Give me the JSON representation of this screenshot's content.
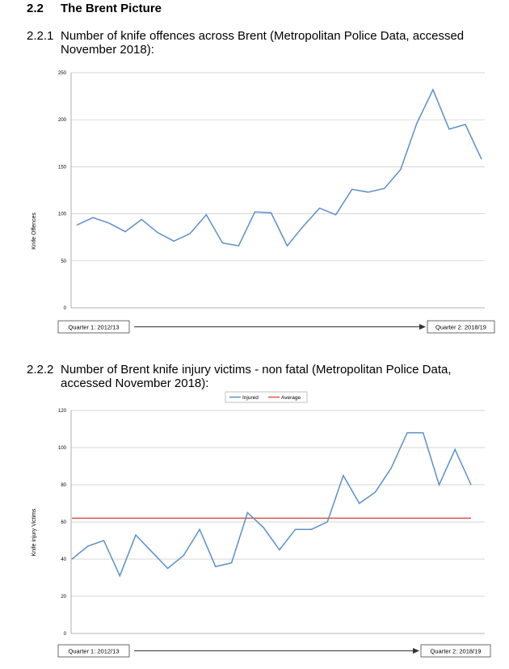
{
  "section": {
    "number": "2.2",
    "title": "The Brent Picture"
  },
  "subsections": [
    {
      "number": "2.2.1",
      "title": "Number of knife offences across Brent (Metropolitan Police Data, accessed November 2018):"
    },
    {
      "number": "2.2.2",
      "title": "Number of Brent knife injury victims - non fatal (Metropolitan Police Data, accessed November 2018):"
    }
  ],
  "colors": {
    "series": "#5b8fc8",
    "average": "#d9534f",
    "grid": "#c8c8c8"
  },
  "chart_data": [
    {
      "type": "line",
      "title": "",
      "xlabel": "",
      "ylabel": "Knife Offences",
      "ylim": [
        0,
        250
      ],
      "yticks": [
        0,
        50,
        100,
        150,
        200,
        250
      ],
      "grid": true,
      "x_start_label": "Quarter 1: 2012/13",
      "x_end_label": "Quarter 2: 2018/19",
      "series": [
        {
          "name": "Knife Offences",
          "values": [
            88,
            96,
            90,
            81,
            94,
            80,
            71,
            79,
            99,
            69,
            66,
            102,
            101,
            66,
            87,
            106,
            99,
            126,
            123,
            127,
            147,
            196,
            232,
            190,
            195,
            158
          ]
        }
      ]
    },
    {
      "type": "line",
      "title": "",
      "xlabel": "",
      "ylabel": "Knife injury Victims",
      "ylim": [
        0,
        120
      ],
      "yticks": [
        0,
        20,
        40,
        60,
        80,
        100,
        120
      ],
      "grid": true,
      "legend": "top",
      "x_start_label": "Quarter 1: 2012/13",
      "x_end_label": "Quarter 2: 2018/19",
      "series": [
        {
          "name": "Injured",
          "values": [
            40,
            47,
            50,
            31,
            53,
            44,
            35,
            42,
            56,
            36,
            38,
            65,
            57,
            45,
            56,
            56,
            60,
            85,
            70,
            76,
            89,
            108,
            108,
            80,
            99,
            80
          ]
        },
        {
          "name": "Average",
          "values": [
            62,
            62,
            62,
            62,
            62,
            62,
            62,
            62,
            62,
            62,
            62,
            62,
            62,
            62,
            62,
            62,
            62,
            62,
            62,
            62,
            62,
            62,
            62,
            62,
            62,
            62
          ]
        }
      ]
    }
  ]
}
